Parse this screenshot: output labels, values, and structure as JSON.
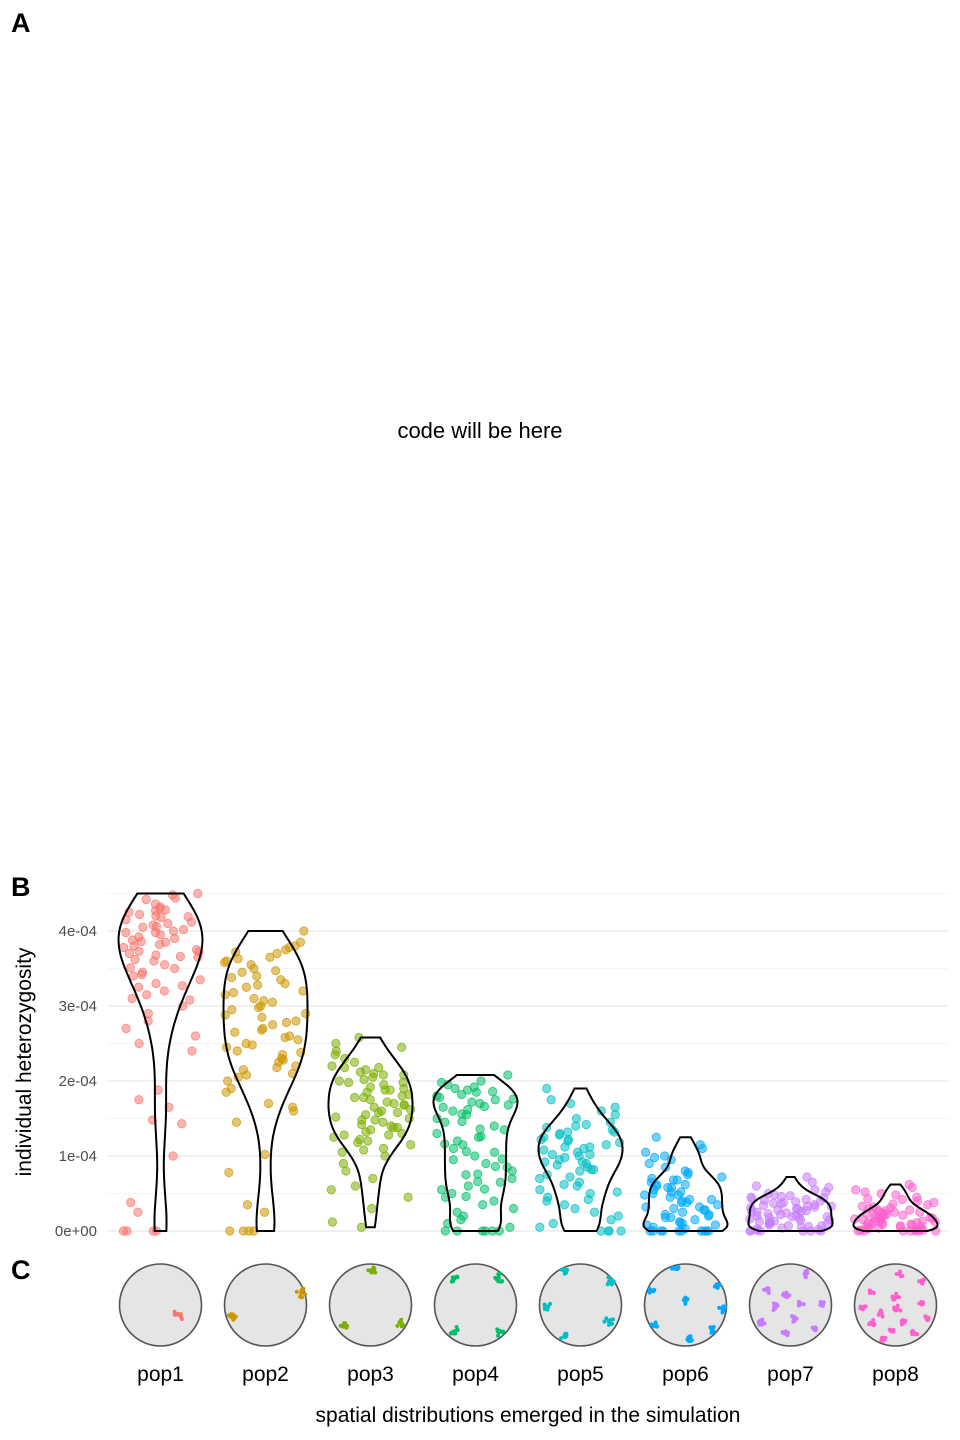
{
  "panels": {
    "a": "A",
    "b": "B",
    "c": "C"
  },
  "placeholder_text": "code will be here",
  "chart_data": {
    "type": "scatter",
    "style": "jittered points with violin overlay",
    "title": "",
    "xlabel": "spatial distributions emerged in the simulation",
    "ylabel": "individual heterozygosity",
    "ylim": [
      0,
      0.00045
    ],
    "yticks": [
      0,
      0.0001,
      0.0002,
      0.0003,
      0.0004
    ],
    "ytick_labels": [
      "0e+00",
      "1e-04",
      "2e-04",
      "3e-04",
      "4e-04"
    ],
    "grid": true,
    "legend": "none",
    "categories": [
      "pop1",
      "pop2",
      "pop3",
      "pop4",
      "pop5",
      "pop6",
      "pop7",
      "pop8"
    ],
    "colors": [
      "#F8766D",
      "#CD9600",
      "#7CAE00",
      "#00BE67",
      "#00BFC4",
      "#00A9FF",
      "#C77CFF",
      "#FF61CC"
    ],
    "series": [
      {
        "name": "pop1",
        "values": [
          0.00043,
          0.000428,
          0.000425,
          0.000422,
          0.00042,
          0.000418,
          0.000415,
          0.000412,
          0.00041,
          0.000408,
          0.000405,
          0.000402,
          0.0004,
          0.000398,
          0.000395,
          0.000392,
          0.00039,
          0.000388,
          0.000385,
          0.000382,
          0.00038,
          0.000378,
          0.000375,
          0.000372,
          0.00037,
          0.000368,
          0.000365,
          0.000362,
          0.00036,
          0.000355,
          0.00035,
          0.000345,
          0.00034,
          0.000335,
          0.00033,
          0.000325,
          0.00032,
          0.000315,
          0.00031,
          0.0003,
          0.00029,
          0.00028,
          0.00027,
          0.00026,
          0.00025,
          0.00024,
          0.000188,
          0.000175,
          0.000165,
          0.000148,
          0.000143,
          0.0001,
          3.8e-05,
          2.5e-05,
          0.0,
          0.0,
          0.0,
          0.0,
          0.000444,
          0.000448,
          0.00045,
          0.000442,
          0.000436,
          0.000432,
          0.000427,
          0.000419,
          0.000406,
          0.000398,
          0.000386,
          0.000373,
          0.000366,
          0.000351,
          0.000342,
          0.000327,
          0.000308
        ]
      },
      {
        "name": "pop2",
        "values": [
          0.0004,
          0.000385,
          0.00038,
          0.000375,
          0.00037,
          0.000365,
          0.00036,
          0.000355,
          0.00035,
          0.000345,
          0.00034,
          0.000335,
          0.00033,
          0.000325,
          0.00032,
          0.000315,
          0.00031,
          0.000305,
          0.0003,
          0.000295,
          0.00029,
          0.000285,
          0.00028,
          0.000275,
          0.00027,
          0.000265,
          0.00026,
          0.000255,
          0.00025,
          0.000245,
          0.00024,
          0.000235,
          0.00023,
          0.000225,
          0.00022,
          0.000215,
          0.00021,
          0.000205,
          0.0002,
          0.00019,
          0.000185,
          0.00017,
          0.000165,
          0.00016,
          0.000145,
          0.000102,
          7.8e-05,
          3.5e-05,
          2.5e-05,
          0.0,
          0.0,
          0.0,
          0.0,
          0.000378,
          0.000372,
          0.000363,
          0.000358,
          0.000347,
          0.000338,
          0.000328,
          0.000318,
          0.000307,
          0.000298,
          0.000288,
          0.000278,
          0.000268,
          0.000258,
          0.000248,
          0.000238,
          0.000228,
          0.000218,
          0.000208
        ]
      },
      {
        "name": "pop3",
        "values": [
          0.000258,
          0.00025,
          0.000245,
          0.00024,
          0.000235,
          0.00023,
          0.000225,
          0.00022,
          0.000218,
          0.000215,
          0.000212,
          0.00021,
          0.000208,
          0.000205,
          0.000202,
          0.0002,
          0.000198,
          0.000195,
          0.000192,
          0.00019,
          0.000188,
          0.000185,
          0.000182,
          0.00018,
          0.000178,
          0.000175,
          0.000172,
          0.00017,
          0.000168,
          0.000165,
          0.000162,
          0.00016,
          0.000158,
          0.000155,
          0.000152,
          0.00015,
          0.000148,
          0.000145,
          0.000142,
          0.00014,
          0.000138,
          0.000135,
          0.000132,
          0.00013,
          0.000128,
          0.000125,
          0.000122,
          0.00012,
          0.000115,
          0.00011,
          0.000105,
          0.0001,
          9e-05,
          8e-05,
          7e-05,
          6e-05,
          5.5e-05,
          4.5e-05,
          3e-05,
          1.2e-05,
          5e-06,
          0.000218,
          0.000208,
          0.000198,
          0.000188,
          0.000178,
          0.000168,
          0.000158,
          0.000148,
          0.000138,
          0.000128,
          0.000118,
          0.000108
        ]
      },
      {
        "name": "pop4",
        "values": [
          0.000208,
          0.0002,
          0.000198,
          0.000195,
          0.000192,
          0.00019,
          0.000188,
          0.000185,
          0.000182,
          0.00018,
          0.000178,
          0.000175,
          0.000172,
          0.00017,
          0.000168,
          0.000165,
          0.000162,
          0.00016,
          0.000155,
          0.00015,
          0.000145,
          0.00014,
          0.000135,
          0.00013,
          0.000125,
          0.00012,
          0.000115,
          0.00011,
          0.000105,
          0.0001,
          9.5e-05,
          9e-05,
          8.5e-05,
          8e-05,
          7.5e-05,
          7e-05,
          6.5e-05,
          6e-05,
          5.5e-05,
          5e-05,
          4.5e-05,
          4e-05,
          3.5e-05,
          3e-05,
          2.5e-05,
          2e-05,
          1.5e-05,
          1e-05,
          5e-06,
          0.0,
          0.0,
          0.0,
          0.0,
          0.0,
          0.0,
          0.000186,
          0.000176,
          0.000166,
          0.000156,
          0.000146,
          0.000136,
          0.000126,
          0.000116,
          0.000106,
          9.6e-05,
          8.6e-05,
          7.6e-05,
          6.6e-05,
          5.6e-05,
          4.6e-05
        ]
      },
      {
        "name": "pop5",
        "values": [
          0.00019,
          0.000175,
          0.00017,
          0.000165,
          0.00016,
          0.000155,
          0.00015,
          0.000145,
          0.00014,
          0.000138,
          0.000135,
          0.000132,
          0.00013,
          0.000128,
          0.000125,
          0.000122,
          0.00012,
          0.000118,
          0.000115,
          0.000112,
          0.00011,
          0.000108,
          0.000105,
          0.000102,
          0.0001,
          9.8e-05,
          9.5e-05,
          9.2e-05,
          9e-05,
          8.8e-05,
          8.5e-05,
          8.2e-05,
          8e-05,
          7.5e-05,
          7e-05,
          6.5e-05,
          6e-05,
          5.5e-05,
          5e-05,
          4.5e-05,
          4e-05,
          3.5e-05,
          3e-05,
          2.5e-05,
          2e-05,
          1.5e-05,
          1e-05,
          5e-06,
          0.0,
          0.0,
          0.0,
          0.0,
          0.000142,
          0.000132,
          0.000122,
          0.000112,
          0.000102,
          9.2e-05,
          8.2e-05,
          7.2e-05,
          6.2e-05,
          5.2e-05,
          4.2e-05
        ]
      },
      {
        "name": "pop6",
        "values": [
          0.000125,
          0.000115,
          0.00011,
          0.000105,
          0.0001,
          9.8e-05,
          9.5e-05,
          9e-05,
          8.5e-05,
          8e-05,
          7.8e-05,
          7.5e-05,
          7.2e-05,
          7e-05,
          6.8e-05,
          6.5e-05,
          6.2e-05,
          6e-05,
          5.8e-05,
          5.5e-05,
          5.2e-05,
          5e-05,
          4.8e-05,
          4.5e-05,
          4.2e-05,
          4e-05,
          3.8e-05,
          3.5e-05,
          3.2e-05,
          3e-05,
          2.8e-05,
          2.5e-05,
          2.2e-05,
          2e-05,
          1.8e-05,
          1.5e-05,
          1.2e-05,
          1e-05,
          8e-06,
          5e-06,
          3e-06,
          0.0,
          0.0,
          0.0,
          0.0,
          0.0,
          0.0,
          0.0,
          0.0,
          0.0,
          0.0,
          6.8e-05,
          5.8e-05,
          4.8e-05,
          3.8e-05,
          2.8e-05,
          1.8e-05,
          8e-06,
          6.2e-05,
          5.2e-05,
          4.2e-05,
          3.2e-05,
          2.2e-05,
          1.2e-05
        ]
      },
      {
        "name": "pop7",
        "values": [
          7.2e-05,
          6.5e-05,
          6e-05,
          5.8e-05,
          5.5e-05,
          5.2e-05,
          5e-05,
          4.8e-05,
          4.6e-05,
          4.4e-05,
          4.2e-05,
          4e-05,
          3.8e-05,
          3.6e-05,
          3.5e-05,
          3.4e-05,
          3.2e-05,
          3e-05,
          2.9e-05,
          2.8e-05,
          2.6e-05,
          2.5e-05,
          2.4e-05,
          2.2e-05,
          2e-05,
          1.9e-05,
          1.8e-05,
          1.6e-05,
          1.5e-05,
          1.4e-05,
          1.2e-05,
          1e-05,
          9e-06,
          8e-06,
          6e-06,
          5e-06,
          4e-06,
          2e-06,
          1e-06,
          0.0,
          0.0,
          0.0,
          0.0,
          0.0,
          0.0,
          4.5e-05,
          4.1e-05,
          3.7e-05,
          3.3e-05,
          3.1e-05,
          2.7e-05,
          2.3e-05,
          2.1e-05,
          1.7e-05,
          1.3e-05,
          1.1e-05,
          7e-06,
          3e-06,
          4.7e-05,
          4.3e-05,
          3.9e-05,
          3.3e-05,
          2.7e-05,
          1.9e-05,
          1.3e-05,
          7e-06
        ]
      },
      {
        "name": "pop8",
        "values": [
          6.2e-05,
          5.8e-05,
          5.5e-05,
          5.2e-05,
          5e-05,
          4.8e-05,
          4.5e-05,
          4.2e-05,
          4e-05,
          3.8e-05,
          3.5e-05,
          3.2e-05,
          3e-05,
          2.8e-05,
          2.6e-05,
          2.5e-05,
          2.4e-05,
          2.2e-05,
          2e-05,
          1.9e-05,
          1.8e-05,
          1.7e-05,
          1.6e-05,
          1.5e-05,
          1.4e-05,
          1.3e-05,
          1.2e-05,
          1.1e-05,
          1e-05,
          9e-06,
          8e-06,
          7e-06,
          6e-06,
          5e-06,
          4e-06,
          3e-06,
          2e-06,
          1e-06,
          0.0,
          0.0,
          0.0,
          0.0,
          0.0,
          0.0,
          0.0,
          3.6e-05,
          3.1e-05,
          2.7e-05,
          2.3e-05,
          2.1e-05,
          1.7e-05,
          1.3e-05,
          1.1e-05,
          7e-06,
          3e-06,
          2.9e-05,
          2.5e-05,
          1.9e-05,
          1.5e-05,
          9e-06,
          5e-06,
          1e-06,
          4.3e-05,
          3.3e-05,
          2.1e-05,
          1.1e-05
        ]
      }
    ],
    "spatial_maps": [
      {
        "name": "pop1",
        "clusters": [
          [
            0.72,
            0.62
          ]
        ]
      },
      {
        "name": "pop2",
        "clusters": [
          [
            0.1,
            0.68
          ],
          [
            0.93,
            0.35
          ]
        ]
      },
      {
        "name": "pop3",
        "clusters": [
          [
            0.52,
            0.08
          ],
          [
            0.17,
            0.73
          ],
          [
            0.87,
            0.73
          ]
        ]
      },
      {
        "name": "pop4",
        "clusters": [
          [
            0.24,
            0.17
          ],
          [
            0.79,
            0.17
          ],
          [
            0.24,
            0.82
          ],
          [
            0.79,
            0.82
          ]
        ]
      },
      {
        "name": "pop5",
        "clusters": [
          [
            0.31,
            0.08
          ],
          [
            0.85,
            0.22
          ],
          [
            0.08,
            0.52
          ],
          [
            0.85,
            0.7
          ],
          [
            0.31,
            0.88
          ]
        ]
      },
      {
        "name": "pop6",
        "clusters": [
          [
            0.38,
            0.06
          ],
          [
            0.88,
            0.25
          ],
          [
            0.1,
            0.33
          ],
          [
            0.5,
            0.45
          ],
          [
            0.12,
            0.75
          ],
          [
            0.95,
            0.55
          ],
          [
            0.82,
            0.8
          ],
          [
            0.55,
            0.9
          ]
        ]
      },
      {
        "name": "pop7",
        "clusters": [
          [
            0.22,
            0.32
          ],
          [
            0.68,
            0.12
          ],
          [
            0.45,
            0.37
          ],
          [
            0.88,
            0.48
          ],
          [
            0.15,
            0.72
          ],
          [
            0.54,
            0.66
          ],
          [
            0.44,
            0.85
          ],
          [
            0.8,
            0.8
          ],
          [
            0.62,
            0.48
          ],
          [
            0.3,
            0.52
          ]
        ]
      },
      {
        "name": "pop8",
        "clusters": [
          [
            0.55,
            0.12
          ],
          [
            0.82,
            0.2
          ],
          [
            0.2,
            0.35
          ],
          [
            0.5,
            0.4
          ],
          [
            0.82,
            0.48
          ],
          [
            0.1,
            0.52
          ],
          [
            0.33,
            0.6
          ],
          [
            0.6,
            0.7
          ],
          [
            0.9,
            0.66
          ],
          [
            0.22,
            0.72
          ],
          [
            0.45,
            0.82
          ],
          [
            0.72,
            0.85
          ],
          [
            0.35,
            0.9
          ],
          [
            0.52,
            0.55
          ]
        ]
      }
    ]
  }
}
